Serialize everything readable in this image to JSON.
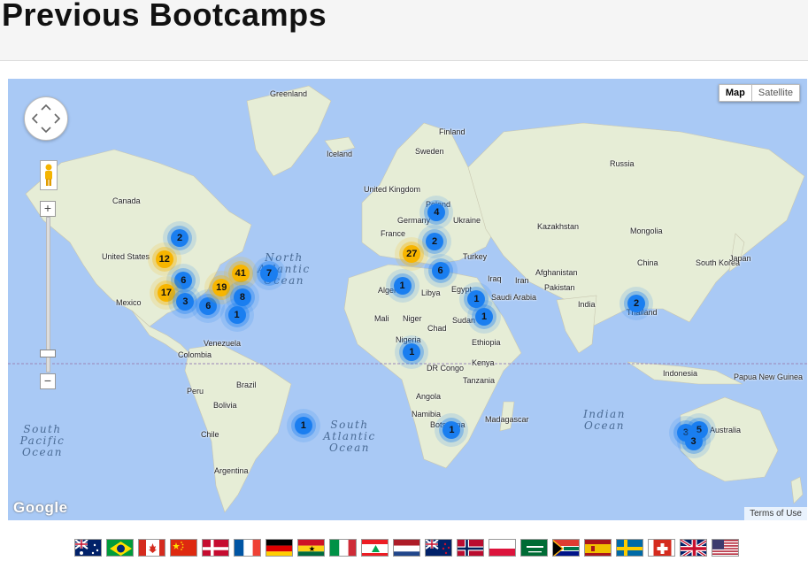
{
  "page": {
    "title": "Previous Bootcamps"
  },
  "map": {
    "type_controls": {
      "map": "Map",
      "satellite": "Satellite",
      "selected": "Map"
    },
    "zoom": {
      "in": "+",
      "out": "−"
    },
    "attribution_logo": "Google",
    "terms": "Terms of Use",
    "colors": {
      "water": "#a9c9f5",
      "land": "#e8eed8",
      "cluster_small": "#1a7ef0",
      "cluster_large": "#f7b500"
    },
    "ocean_labels": [
      {
        "id": "north-atlantic",
        "text": "North\nAtlantic\nOcean"
      },
      {
        "id": "south-atlantic",
        "text": "South\nAtlantic\nOcean"
      },
      {
        "id": "south-pacific",
        "text": "South\nPacific\nOcean"
      },
      {
        "id": "indian",
        "text": "Indian\nOcean"
      }
    ],
    "place_labels": [
      "Greenland",
      "Iceland",
      "Finland",
      "Sweden",
      "Russia",
      "Canada",
      "United Kingdom",
      "Poland",
      "Germany",
      "Ukraine",
      "France",
      "Kazakhstan",
      "Mongolia",
      "United States",
      "Turkey",
      "Iraq",
      "Iran",
      "Afghanistan",
      "Pakistan",
      "China",
      "South Korea",
      "Japan",
      "Algeria",
      "Libya",
      "Egypt",
      "Saudi Arabia",
      "India",
      "Mali",
      "Niger",
      "Chad",
      "Sudan",
      "Thailand",
      "Mexico",
      "Venezuela",
      "Colombia",
      "Nigeria",
      "Ethiopia",
      "Kenya",
      "DR Congo",
      "Tanzania",
      "Indonesia",
      "Papua New Guinea",
      "Peru",
      "Brazil",
      "Bolivia",
      "Angola",
      "Namibia",
      "Botswana",
      "Madagascar",
      "Chile",
      "Argentina",
      "Australia"
    ],
    "clusters": [
      {
        "count": "2",
        "size": "small",
        "lat": 55,
        "lon": -120
      },
      {
        "count": "12",
        "size": "large",
        "lat": 48,
        "lon": -128
      },
      {
        "count": "6",
        "size": "small",
        "lat": 40,
        "lon": -118
      },
      {
        "count": "17",
        "size": "large",
        "lat": 35,
        "lon": -127
      },
      {
        "count": "3",
        "size": "small",
        "lat": 31,
        "lon": -117
      },
      {
        "count": "6",
        "size": "small",
        "lat": 29,
        "lon": -105
      },
      {
        "count": "19",
        "size": "large",
        "lat": 37,
        "lon": -98
      },
      {
        "count": "41",
        "size": "large",
        "lat": 43,
        "lon": -88
      },
      {
        "count": "7",
        "size": "small",
        "lat": 43,
        "lon": -73
      },
      {
        "count": "8",
        "size": "small",
        "lat": 33,
        "lon": -87
      },
      {
        "count": "1",
        "size": "small",
        "lat": 25,
        "lon": -90
      },
      {
        "count": "4",
        "size": "small",
        "lat": 62,
        "lon": 15
      },
      {
        "count": "2",
        "size": "small",
        "lat": 54,
        "lon": 14
      },
      {
        "count": "27",
        "size": "large",
        "lat": 50,
        "lon": 2
      },
      {
        "count": "6",
        "size": "small",
        "lat": 44,
        "lon": 17
      },
      {
        "count": "1",
        "size": "small",
        "lat": 38,
        "lon": -3
      },
      {
        "count": "1",
        "size": "small",
        "lat": 32,
        "lon": 36
      },
      {
        "count": "1",
        "size": "small",
        "lat": 24,
        "lon": 40
      },
      {
        "count": "2",
        "size": "small",
        "lat": 30,
        "lon": 120
      },
      {
        "count": "1",
        "size": "small",
        "lat": 6,
        "lon": 2
      },
      {
        "count": "1",
        "size": "small",
        "lat": -31,
        "lon": -55
      },
      {
        "count": "1",
        "size": "small",
        "lat": -33,
        "lon": 23
      },
      {
        "count": "3",
        "size": "small",
        "lat": -34,
        "lon": 146
      },
      {
        "count": "5",
        "size": "small",
        "lat": -33,
        "lon": 153
      },
      {
        "count": "3",
        "size": "small",
        "lat": -38,
        "lon": 150
      }
    ]
  },
  "flags": [
    {
      "id": "australia",
      "icon": "flag-australia"
    },
    {
      "id": "brazil",
      "icon": "flag-brazil"
    },
    {
      "id": "canada",
      "icon": "flag-canada"
    },
    {
      "id": "china",
      "icon": "flag-china"
    },
    {
      "id": "denmark",
      "icon": "flag-denmark"
    },
    {
      "id": "france",
      "icon": "flag-france"
    },
    {
      "id": "germany",
      "icon": "flag-germany"
    },
    {
      "id": "ghana",
      "icon": "flag-ghana"
    },
    {
      "id": "italy",
      "icon": "flag-italy"
    },
    {
      "id": "lebanon",
      "icon": "flag-lebanon"
    },
    {
      "id": "netherlands",
      "icon": "flag-netherlands"
    },
    {
      "id": "new-zealand",
      "icon": "flag-new-zealand"
    },
    {
      "id": "norway",
      "icon": "flag-norway"
    },
    {
      "id": "poland",
      "icon": "flag-poland"
    },
    {
      "id": "saudi-arabia",
      "icon": "flag-saudi-arabia"
    },
    {
      "id": "south-africa",
      "icon": "flag-south-africa"
    },
    {
      "id": "spain",
      "icon": "flag-spain"
    },
    {
      "id": "sweden",
      "icon": "flag-sweden"
    },
    {
      "id": "switzerland",
      "icon": "flag-switzerland"
    },
    {
      "id": "united-kingdom",
      "icon": "flag-united-kingdom"
    },
    {
      "id": "united-states",
      "icon": "flag-united-states"
    }
  ]
}
